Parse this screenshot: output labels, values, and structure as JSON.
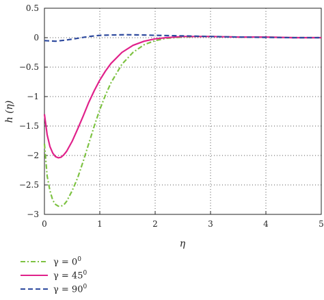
{
  "chart_data": {
    "type": "line",
    "title": "",
    "xlabel": "η",
    "ylabel": "h (η)",
    "xlim": [
      0,
      5
    ],
    "ylim": [
      -3,
      0.5
    ],
    "xticks": [
      "0",
      "1",
      "2",
      "3",
      "4",
      "5"
    ],
    "yticks": [
      "0.5",
      "0",
      "−0.5",
      "−1",
      "−1.5",
      "−2",
      "−2.5",
      "−3"
    ],
    "grid": "dotted",
    "legend_position": "below",
    "series": [
      {
        "name": "γ = 0",
        "name_sup": "0",
        "color": "#7dc242",
        "dash": "dashdot",
        "x": [
          0,
          0.05,
          0.1,
          0.15,
          0.2,
          0.25,
          0.3,
          0.35,
          0.4,
          0.5,
          0.6,
          0.7,
          0.8,
          0.9,
          1.0,
          1.1,
          1.2,
          1.4,
          1.6,
          1.8,
          2.0,
          2.2,
          2.5,
          2.8,
          3.0,
          3.5,
          4.0,
          4.5,
          5.0
        ],
        "y": [
          -1.8,
          -2.35,
          -2.6,
          -2.76,
          -2.83,
          -2.86,
          -2.86,
          -2.84,
          -2.78,
          -2.6,
          -2.38,
          -2.1,
          -1.8,
          -1.5,
          -1.22,
          -0.98,
          -0.77,
          -0.45,
          -0.25,
          -0.12,
          -0.05,
          -0.01,
          0.01,
          0.02,
          0.02,
          0.01,
          0.01,
          0.0,
          0.0
        ]
      },
      {
        "name": "γ = 45",
        "name_sup": "0",
        "color": "#e0218a",
        "dash": "solid",
        "x": [
          0,
          0.05,
          0.1,
          0.15,
          0.2,
          0.25,
          0.3,
          0.35,
          0.4,
          0.5,
          0.6,
          0.7,
          0.8,
          0.9,
          1.0,
          1.1,
          1.2,
          1.4,
          1.6,
          1.8,
          2.0,
          2.2,
          2.5,
          2.8,
          3.0,
          3.5,
          4.0,
          4.5,
          5.0
        ],
        "y": [
          -1.3,
          -1.65,
          -1.85,
          -1.96,
          -2.02,
          -2.04,
          -2.03,
          -1.99,
          -1.93,
          -1.76,
          -1.55,
          -1.33,
          -1.1,
          -0.9,
          -0.72,
          -0.57,
          -0.44,
          -0.25,
          -0.13,
          -0.06,
          -0.02,
          0.0,
          0.02,
          0.02,
          0.02,
          0.01,
          0.01,
          0.0,
          0.0
        ]
      },
      {
        "name": "γ = 90",
        "name_sup": "0",
        "color": "#2e4a9e",
        "dash": "dashed",
        "x": [
          0,
          0.2,
          0.4,
          0.6,
          0.8,
          1.0,
          1.2,
          1.5,
          1.8,
          2.0,
          2.5,
          3.0,
          3.5,
          4.0,
          4.5,
          5.0
        ],
        "y": [
          -0.05,
          -0.06,
          -0.04,
          -0.01,
          0.02,
          0.04,
          0.045,
          0.05,
          0.045,
          0.04,
          0.03,
          0.02,
          0.01,
          0.005,
          0.0,
          0.0
        ]
      }
    ]
  }
}
